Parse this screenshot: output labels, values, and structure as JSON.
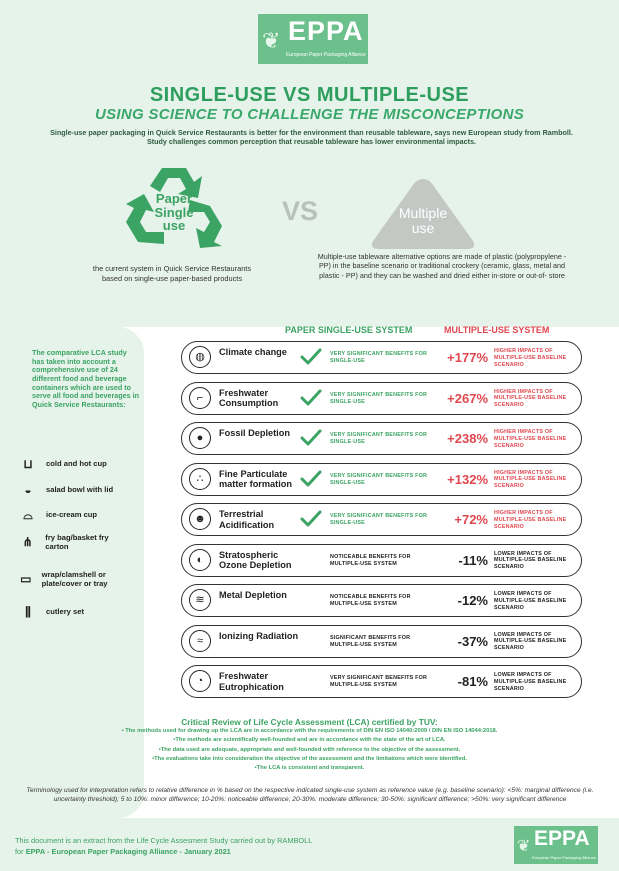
{
  "brand": {
    "logo_text": "EPPA",
    "logo_subtitle": "European Paper Packaging Alliance"
  },
  "header": {
    "title": "SINGLE-USE VS MULTIPLE-USE",
    "subtitle": "USING SCIENCE TO CHALLENGE THE MISCONCEPTIONS",
    "intro": "Single-use paper packaging in Quick Service Restaurants is better for the environment than reusable tableware, says new European study from Ramboll. Study challenges common perception that reusable tableware has lower environmental impacts."
  },
  "comparison": {
    "paper_label_1": "Paper",
    "paper_label_2": "Single",
    "paper_label_3": "use",
    "vs": "VS",
    "multi_label_1": "Multiple",
    "multi_label_2": "use",
    "paper_caption": "the current system in Quick Service Restaurants based on single-use paper-based products",
    "multi_caption": "Multiple-use tableware alternative options are made of plastic (polypropylene - PP) in the baseline scenario or traditional crockery (ceramic, glass, metal and plastic - PP) and they can be washed and dried either in-store or out-of- store"
  },
  "colors": {
    "green": "#3ba363",
    "red": "#e0474f",
    "background": "#e6f3ea"
  },
  "sidebar": {
    "intro": "The comparative LCA study has taken into account a comprehensive use of 24 different food and beverage containers which are used to serve all food and beverages in Quick Service Restaurants:",
    "containers": [
      {
        "icon": "cup-icon",
        "label": "cold and hot cup"
      },
      {
        "icon": "salad-bowl-icon",
        "label": "salad bowl with lid"
      },
      {
        "icon": "ice-cream-cup-icon",
        "label": "ice-cream cup"
      },
      {
        "icon": "fry-bag-icon",
        "label": "fry bag/basket fry carton"
      },
      {
        "icon": "clamshell-icon",
        "label": "wrap/clamshell or plate/cover or tray"
      },
      {
        "icon": "cutlery-icon",
        "label": "cutlery set"
      }
    ]
  },
  "table": {
    "header_paper": "PAPER SINGLE-USE SYSTEM",
    "header_multi": "MULTIPLE-USE SYSTEM",
    "rows": [
      {
        "icon": "globe-icon",
        "name": "Climate change",
        "benefit": "VERY SIGNIFICANT BENEFITS FOR SINGLE-USE",
        "checked": true,
        "value": "+177%",
        "impact": "HIGHER IMPACTS OF MULTIPLE-USE BASELINE SCENARIO",
        "direction": "higher"
      },
      {
        "icon": "faucet-icon",
        "name": "Freshwater Consumption",
        "benefit": "VERY SIGNIFICANT BENEFITS FOR SINGLE-USE",
        "checked": true,
        "value": "+267%",
        "impact": "HIGHER IMPACTS OF MULTIPLE-USE BASELINE SCENARIO",
        "direction": "higher"
      },
      {
        "icon": "fossil-icon",
        "name": "Fossil Depletion",
        "benefit": "VERY SIGNIFICANT BENEFITS FOR SINGLE-USE",
        "checked": true,
        "value": "+238%",
        "impact": "HIGHER IMPACTS OF MULTIPLE-USE BASELINE SCENARIO",
        "direction": "higher"
      },
      {
        "icon": "particles-icon",
        "name": "Fine Particulate matter formation",
        "benefit": "VERY SIGNIFICANT BENEFITS FOR SINGLE-USE",
        "checked": true,
        "value": "+132%",
        "impact": "HIGHER IMPACTS OF MULTIPLE-USE BASELINE SCENARIO",
        "direction": "higher"
      },
      {
        "icon": "acid-icon",
        "name": "Terrestrial Acidification",
        "benefit": "VERY SIGNIFICANT BENEFITS FOR SINGLE-USE",
        "checked": true,
        "value": "+72%",
        "impact": "HIGHER IMPACTS OF MULTIPLE-USE BASELINE SCENARIO",
        "direction": "higher"
      },
      {
        "icon": "ozone-icon",
        "name": "Stratospheric Ozone Depletion",
        "benefit": "NOTICEABLE BENEFITS FOR MULTIPLE-USE SYSTEM",
        "checked": false,
        "value": "-11%",
        "impact": "LOWER IMPACTS OF MULTIPLE-USE BASELINE SCENARIO",
        "direction": "lower"
      },
      {
        "icon": "metal-icon",
        "name": "Metal Depletion",
        "benefit": "NOTICEABLE BENEFITS FOR MULTIPLE-USE SYSTEM",
        "checked": false,
        "value": "-12%",
        "impact": "LOWER IMPACTS OF MULTIPLE-USE BASELINE SCENARIO",
        "direction": "lower"
      },
      {
        "icon": "radiation-icon",
        "name": "Ionizing Radiation",
        "benefit": "SIGNIFICANT BENEFITS FOR MULTIPLE-USE SYSTEM",
        "checked": false,
        "value": "-37%",
        "impact": "LOWER IMPACTS OF MULTIPLE-USE BASELINE SCENARIO",
        "direction": "lower"
      },
      {
        "icon": "water-icon",
        "name": "Freshwater Eutrophication",
        "benefit": "VERY SIGNIFICANT BENEFITS FOR MULTIPLE-USE SYSTEM",
        "checked": false,
        "value": "-81%",
        "impact": "LOWER IMPACTS OF MULTIPLE-USE BASELINE SCENARIO",
        "direction": "lower"
      }
    ]
  },
  "review": {
    "title": "Critical Review of Life Cycle Assessment (LCA) certified by TUV:",
    "points": [
      "• The methods used for drawing up the LCA are in accordance with the requirements of DIN EN ISO 14040:2009 / DIN EN ISO 14044:2018.",
      "•The methods are scientifically well-founded and are in accordance with the state of the art of LCA.",
      "•The data used are adequate, appropriate and well-founded with reference to the objective of the assessment.",
      "•The evaluations take into consideration the objective of the assessment and the limitations which were identified.",
      "•The LCA is consistent and transparent."
    ]
  },
  "terminology": "Terminology used for interpretation refers to relative difference in % based on the respective indicated single-use system as reference value (e.g. baseline scenario): <5%: marginal difference (i.e. uncertainty threshold); 5 to 10%: minor difference; 10-20%: noticeable difference; 20-30%: moderate difference; 30-50%: significant difference; >50%: very significant difference",
  "footer": {
    "line1": "This document is an extract from the Life Cycle Assesment Study carried out by RAMBOLL",
    "line2_prefix": "for ",
    "line2_bold": "EPPA - European Paper Packaging Alliance - January 2021"
  }
}
